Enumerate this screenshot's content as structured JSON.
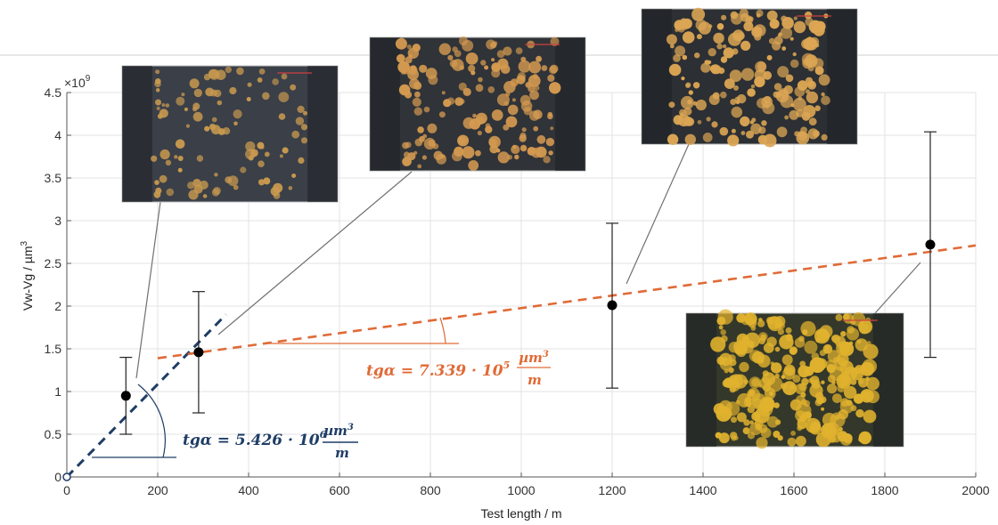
{
  "chart_data": {
    "type": "scatter",
    "xlabel": "Test length / m",
    "ylabel": "Vw-Vg / µm",
    "ylabel_sup": "3",
    "y_multiplier_base": "×10",
    "y_multiplier_exp": "9",
    "xlim": [
      0,
      2000
    ],
    "ylim": [
      0,
      4.5
    ],
    "x_ticks": [
      0,
      200,
      400,
      600,
      800,
      1000,
      1200,
      1400,
      1600,
      1800,
      2000
    ],
    "y_ticks": [
      0,
      0.5,
      1,
      1.5,
      2,
      2.5,
      3,
      3.5,
      4,
      4.5
    ],
    "x_tick_labels": [
      "0",
      "200",
      "400",
      "600",
      "800",
      "1000",
      "1200",
      "1400",
      "1600",
      "1800",
      "2000"
    ],
    "y_tick_labels": [
      "0",
      "0.5",
      "1",
      "1.5",
      "2",
      "2.5",
      "3",
      "3.5",
      "4",
      "4.5"
    ],
    "grid": true,
    "points": [
      {
        "x": 130,
        "y": 0.95,
        "ylow": 0.5,
        "yhigh": 1.4
      },
      {
        "x": 290,
        "y": 1.46,
        "ylow": 0.75,
        "yhigh": 2.17
      },
      {
        "x": 1200,
        "y": 2.01,
        "ylow": 1.04,
        "yhigh": 2.97
      },
      {
        "x": 1900,
        "y": 2.72,
        "ylow": 1.4,
        "yhigh": 4.04
      }
    ],
    "fit_lines": [
      {
        "x": [
          0,
          350
        ],
        "y": [
          0,
          1.9
        ],
        "color": "#1f3d66",
        "style": "dashed"
      },
      {
        "x": [
          200,
          2000
        ],
        "y": [
          1.39,
          2.71
        ],
        "color": "#e06a36",
        "style": "dashed"
      }
    ],
    "annotations": {
      "fit1": {
        "prefix": "tgα = 5.426 · 10",
        "exp": "6",
        "num": "µm",
        "num_sup": "3",
        "den": "m",
        "color": "#1f3d66"
      },
      "fit2": {
        "prefix": "tgα = 7.339 · 10",
        "exp": "5",
        "num": "µm",
        "num_sup": "3",
        "den": "m",
        "color": "#e06a36"
      }
    },
    "insets": [
      {
        "point": 0,
        "density": 0.25,
        "bg": "#3a3f48",
        "particle": "#c99a4f"
      },
      {
        "point": 1,
        "density": 0.5,
        "bg": "#303338",
        "particle": "#d49a50"
      },
      {
        "point": 2,
        "density": 0.65,
        "bg": "#2c2f33",
        "particle": "#dca654"
      },
      {
        "point": 3,
        "density": 0.95,
        "bg": "#34382a",
        "particle": "#e0b22e"
      }
    ]
  }
}
